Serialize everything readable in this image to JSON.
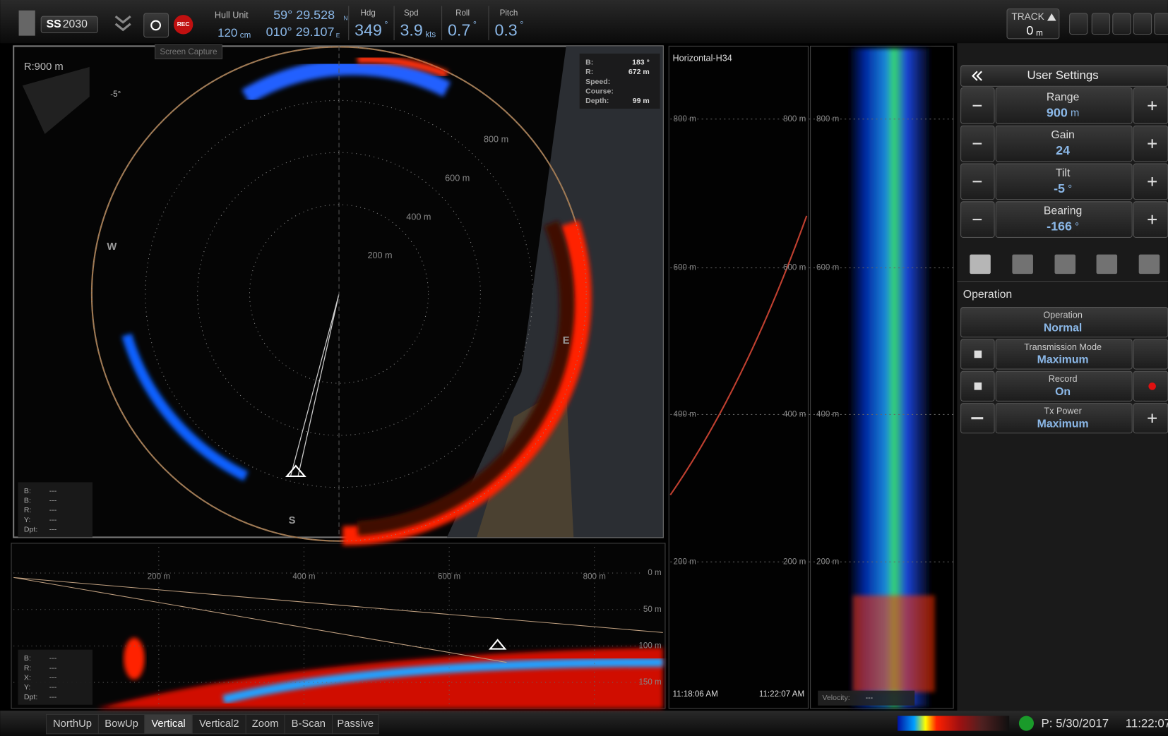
{
  "top_bar": {
    "logo": "SS",
    "model": "2030",
    "rec": "REC",
    "screen_capture": "Screen Capture",
    "hull_unit": {
      "label": "Hull Unit",
      "value": "120",
      "unit": "cm"
    },
    "position": {
      "lat": "59° 29.528",
      "lat_hemi": "N",
      "lon": "010° 29.107",
      "lon_hemi": "E"
    },
    "heading": {
      "label": "Hdg",
      "value": "349",
      "unit": "°"
    },
    "speed": {
      "label": "Spd",
      "value": "3.9",
      "unit": "kts"
    },
    "roll": {
      "label": "Roll",
      "value": "0.7",
      "unit": "°"
    },
    "pitch": {
      "label": "Pitch",
      "value": "0.3",
      "unit": "°"
    },
    "track": {
      "label": "TRACK",
      "value": "0",
      "unit": "m"
    }
  },
  "sonar_view": {
    "range": "R:900 m",
    "tilt": "-5°",
    "info": [
      {
        "label": "B:",
        "value": "183 °"
      },
      {
        "label": "R:",
        "value": "672 m"
      },
      {
        "label": "Speed:"
      },
      {
        "label": "Course:"
      },
      {
        "label": "Depth:",
        "value": "99 m"
      }
    ],
    "rings": [
      "200 m",
      "400 m",
      "600 m",
      "800 m"
    ],
    "compass": [
      "W",
      "E",
      "S"
    ],
    "cursor_info": [
      {
        "label": "B:",
        "value": "---"
      },
      {
        "label": "B:",
        "value": "---"
      },
      {
        "label": "R:",
        "value": "---"
      },
      {
        "label": "Y:",
        "value": "---"
      },
      {
        "label": "Dpt:",
        "value": "---"
      }
    ]
  },
  "vertical_view": {
    "range_labels": [
      "200 m",
      "400 m",
      "600 m",
      "800 m"
    ],
    "depth_labels": [
      "0 m",
      "50 m",
      "100 m",
      "150 m"
    ],
    "cursor_info": [
      {
        "label": "B:",
        "value": "---"
      },
      {
        "label": "R:",
        "value": "---"
      },
      {
        "label": "X:",
        "value": "---"
      },
      {
        "label": "Y:",
        "value": "---"
      },
      {
        "label": "Dpt:",
        "value": "---"
      }
    ]
  },
  "history_view": {
    "title": "Horizontal-H34",
    "left_labels": [
      "800 m",
      "600 m",
      "400 m",
      "200 m"
    ],
    "right_labels": [
      "800 m",
      "600 m",
      "400 m",
      "200 m"
    ],
    "column_labels": [
      "800 m",
      "600 m",
      "400 m",
      "200 m"
    ],
    "start_time": "11:18:06 AM",
    "end_time": "11:22:07 AM",
    "velocity": {
      "label": "Velocity:",
      "value": "---"
    }
  },
  "settings_panel": {
    "title": "User Settings",
    "controls": [
      {
        "label": "Range",
        "value": "900",
        "unit": "m"
      },
      {
        "label": "Gain",
        "value": "24"
      },
      {
        "label": "Tilt",
        "value": "-5",
        "unit": "°"
      },
      {
        "label": "Bearing",
        "value": "-166",
        "unit": "°"
      }
    ],
    "section": "Operation",
    "operation": [
      {
        "label": "Operation",
        "value": "Normal"
      },
      {
        "label": "Transmission Mode",
        "value": "Maximum"
      },
      {
        "label": "Record",
        "value": "On"
      },
      {
        "label": "Tx Power",
        "value": "Maximum"
      }
    ]
  },
  "bottom_bar": {
    "tabs": [
      "NorthUp",
      "BowUp",
      "Vertical",
      "Vertical2",
      "Zoom",
      "B-Scan",
      "Passive"
    ],
    "date": "P: 5/30/2017",
    "time": "11:22:07"
  }
}
